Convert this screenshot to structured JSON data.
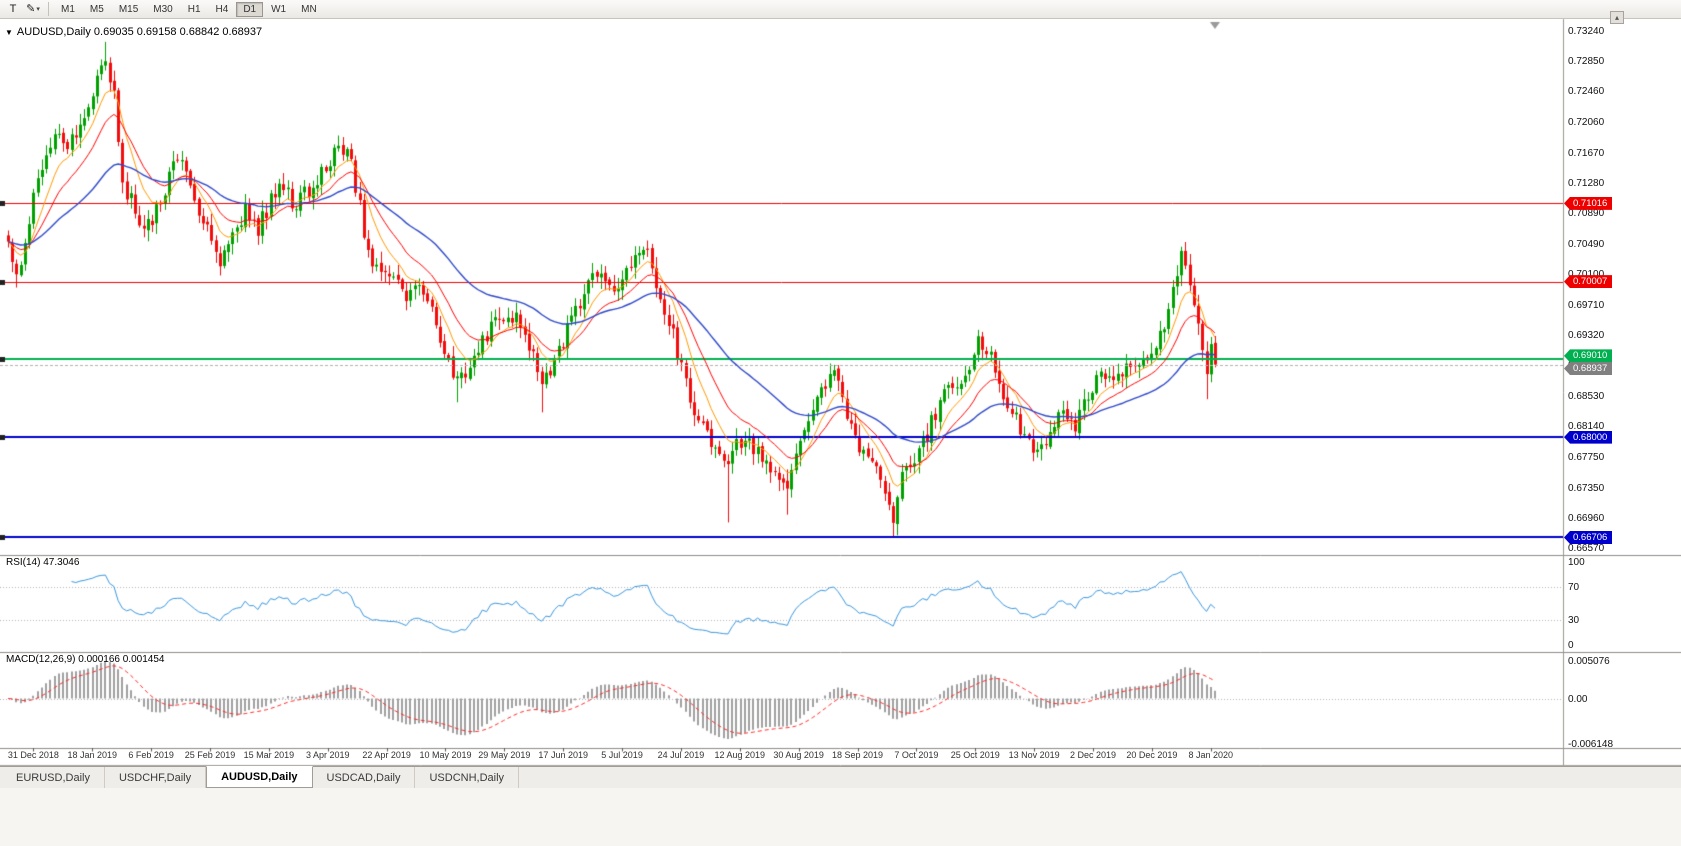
{
  "toolbar": {
    "text_tool_label": "T",
    "timeframes": [
      "M1",
      "M5",
      "M15",
      "M30",
      "H1",
      "H4",
      "D1",
      "W1",
      "MN"
    ],
    "active_timeframe": "D1"
  },
  "icons": {
    "pen": "✎",
    "caret": "▾",
    "collapse_triangle": "▼",
    "scroll_up": "▴"
  },
  "chart": {
    "title": "AUDUSD,Daily 0.69035 0.69158 0.68842 0.68937",
    "symbol": "AUDUSD,Daily",
    "quote": {
      "open": "0.69035",
      "high": "0.69158",
      "low": "0.68842",
      "close": "0.68937"
    }
  },
  "price_axis": {
    "ticks": [
      "0.73240",
      "0.72850",
      "0.72460",
      "0.72060",
      "0.71670",
      "0.71280",
      "0.70890",
      "0.70490",
      "0.70100",
      "0.69710",
      "0.69320",
      "0.68930",
      "0.68530",
      "0.68140",
      "0.67750",
      "0.67350",
      "0.66960",
      "0.66570"
    ],
    "badges": [
      {
        "label": "0.71016",
        "value": 0.71016,
        "color": "#ee0000",
        "type": "resistance-line",
        "dy": 0
      },
      {
        "label": "0.70007",
        "value": 0.70007,
        "color": "#ee0000",
        "type": "resistance-line",
        "dy": 0
      },
      {
        "label": "0.69010",
        "value": 0.6901,
        "color": "#00b050",
        "type": "support-line",
        "dy": -3
      },
      {
        "label": "0.68937",
        "value": 0.68937,
        "color": "#808080",
        "type": "current-price",
        "dy": 4
      },
      {
        "label": "0.68000",
        "value": 0.68,
        "color": "#0000cd",
        "type": "support-line",
        "dy": 0
      },
      {
        "label": "0.66706",
        "value": 0.66706,
        "color": "#0000cd",
        "type": "support-line",
        "dy": 0
      }
    ]
  },
  "x_axis": {
    "labels": [
      "31 Dec 2018",
      "18 Jan 2019",
      "6 Feb 2019",
      "25 Feb 2019",
      "15 Mar 2019",
      "3 Apr 2019",
      "22 Apr 2019",
      "10 May 2019",
      "29 May 2019",
      "17 Jun 2019",
      "5 Jul 2019",
      "24 Jul 2019",
      "12 Aug 2019",
      "30 Aug 2019",
      "18 Sep 2019",
      "7 Oct 2019",
      "25 Oct 2019",
      "13 Nov 2019",
      "2 Dec 2019",
      "20 Dec 2019",
      "8 Jan 2020"
    ]
  },
  "rsi": {
    "label": "RSI(14) 47.3046",
    "ticks": [
      "100",
      "70",
      "30",
      "0"
    ],
    "levels": [
      70,
      30
    ]
  },
  "macd": {
    "label": "MACD(12,26,9) 0.000166 0.001454",
    "ticks": [
      "0.005076",
      "0.00",
      "-0.006148"
    ]
  },
  "tabs": [
    {
      "label": "EURUSD,Daily",
      "active": false
    },
    {
      "label": "USDCHF,Daily",
      "active": false
    },
    {
      "label": "AUDUSD,Daily",
      "active": true
    },
    {
      "label": "USDCAD,Daily",
      "active": false
    },
    {
      "label": "USDCNH,Daily",
      "active": false
    }
  ],
  "colors": {
    "bull": "#00a000",
    "bear": "#f20c0c",
    "ma_fast": "#ff9900",
    "ma_mid": "#ff0000",
    "ma_slow": "#2f49c8",
    "rsi_line": "#3a96dd",
    "macd_hist": "#a0a0a0",
    "macd_signal": "#ff2a2a",
    "current_price_line": "#b0b0b0",
    "grid_dotted": "#b5b5b5"
  },
  "chart_data": {
    "type": "candlestick",
    "symbol": "AUDUSD",
    "timeframe": "Daily",
    "visible_range": {
      "start": "31 Dec 2018",
      "end": "8 Jan 2020"
    },
    "y_range": [
      0.6657,
      0.7324
    ],
    "bar_count": 286,
    "last_quote": {
      "open": 0.69035,
      "high": 0.69158,
      "low": 0.68842,
      "close": 0.68937
    },
    "horizontal_lines": [
      {
        "price": 0.71016,
        "color": "#ee0000",
        "width": 1
      },
      {
        "price": 0.70007,
        "color": "#ee0000",
        "width": 1
      },
      {
        "price": 0.6901,
        "color": "#00b050",
        "width": 2
      },
      {
        "price": 0.68,
        "color": "#0000cd",
        "width": 2
      },
      {
        "price": 0.66706,
        "color": "#0000cd",
        "width": 2
      }
    ],
    "current_price": 0.68937,
    "price_waypoints": [
      [
        0,
        0.7045
      ],
      [
        2,
        0.7005
      ],
      [
        4,
        0.706
      ],
      [
        8,
        0.715
      ],
      [
        12,
        0.719
      ],
      [
        14,
        0.7165
      ],
      [
        17,
        0.721
      ],
      [
        20,
        0.7245
      ],
      [
        23,
        0.7285
      ],
      [
        25,
        0.724
      ],
      [
        27,
        0.712
      ],
      [
        29,
        0.7105
      ],
      [
        32,
        0.706
      ],
      [
        35,
        0.7095
      ],
      [
        38,
        0.7135
      ],
      [
        40,
        0.7165
      ],
      [
        42,
        0.7145
      ],
      [
        45,
        0.7095
      ],
      [
        48,
        0.706
      ],
      [
        50,
        0.703
      ],
      [
        53,
        0.706
      ],
      [
        56,
        0.7095
      ],
      [
        59,
        0.707
      ],
      [
        62,
        0.7105
      ],
      [
        65,
        0.7125
      ],
      [
        68,
        0.7095
      ],
      [
        70,
        0.7115
      ],
      [
        73,
        0.713
      ],
      [
        76,
        0.716
      ],
      [
        78,
        0.7185
      ],
      [
        81,
        0.715
      ],
      [
        83,
        0.71
      ],
      [
        85,
        0.7035
      ],
      [
        88,
        0.7015
      ],
      [
        91,
        0.7
      ],
      [
        94,
        0.6985
      ],
      [
        97,
        0.6995
      ],
      [
        100,
        0.696
      ],
      [
        103,
        0.691
      ],
      [
        106,
        0.687
      ],
      [
        109,
        0.689
      ],
      [
        112,
        0.6925
      ],
      [
        115,
        0.695
      ],
      [
        118,
        0.6965
      ],
      [
        121,
        0.6945
      ],
      [
        124,
        0.6905
      ],
      [
        126,
        0.6865
      ],
      [
        128,
        0.689
      ],
      [
        131,
        0.6925
      ],
      [
        134,
        0.6965
      ],
      [
        137,
        0.6995
      ],
      [
        140,
        0.7015
      ],
      [
        143,
        0.6985
      ],
      [
        146,
        0.701
      ],
      [
        149,
        0.7045
      ],
      [
        151,
        0.7035
      ],
      [
        154,
        0.6985
      ],
      [
        157,
        0.693
      ],
      [
        160,
        0.687
      ],
      [
        163,
        0.682
      ],
      [
        166,
        0.679
      ],
      [
        168,
        0.6775
      ],
      [
        170,
        0.6755
      ],
      [
        172,
        0.68
      ],
      [
        175,
        0.679
      ],
      [
        178,
        0.677
      ],
      [
        181,
        0.6745
      ],
      [
        184,
        0.673
      ],
      [
        187,
        0.6795
      ],
      [
        190,
        0.684
      ],
      [
        193,
        0.687
      ],
      [
        195,
        0.688
      ],
      [
        197,
        0.6845
      ],
      [
        200,
        0.6795
      ],
      [
        203,
        0.6765
      ],
      [
        206,
        0.6745
      ],
      [
        208,
        0.6715
      ],
      [
        209,
        0.67
      ],
      [
        211,
        0.6745
      ],
      [
        214,
        0.6775
      ],
      [
        217,
        0.6805
      ],
      [
        220,
        0.6845
      ],
      [
        222,
        0.687
      ],
      [
        224,
        0.6855
      ],
      [
        227,
        0.689
      ],
      [
        229,
        0.692
      ],
      [
        232,
        0.69
      ],
      [
        234,
        0.686
      ],
      [
        237,
        0.6835
      ],
      [
        240,
        0.68
      ],
      [
        243,
        0.6785
      ],
      [
        246,
        0.6805
      ],
      [
        249,
        0.683
      ],
      [
        252,
        0.6815
      ],
      [
        255,
        0.6855
      ],
      [
        258,
        0.6885
      ],
      [
        261,
        0.6865
      ],
      [
        264,
        0.6895
      ],
      [
        267,
        0.6898
      ],
      [
        270,
        0.6905
      ],
      [
        273,
        0.6945
      ],
      [
        275,
        0.6985
      ],
      [
        277,
        0.703
      ],
      [
        279,
        0.7
      ],
      [
        281,
        0.6955
      ],
      [
        283,
        0.689
      ],
      [
        284,
        0.6915
      ],
      [
        285,
        0.68937
      ]
    ],
    "spikes": [
      {
        "i": 2,
        "low": 0.6993
      },
      {
        "i": 23,
        "high": 0.731
      },
      {
        "i": 106,
        "low": 0.6845
      },
      {
        "i": 126,
        "low": 0.6832
      },
      {
        "i": 170,
        "low": 0.669
      },
      {
        "i": 184,
        "low": 0.67
      },
      {
        "i": 209,
        "low": 0.6671
      },
      {
        "i": 277,
        "high": 0.7041
      },
      {
        "i": 283,
        "low": 0.6849
      }
    ],
    "indicators": {
      "moving_averages": [
        {
          "color": "#ff9900",
          "estimated_period": 8,
          "type": "ema"
        },
        {
          "color": "#ff0000",
          "estimated_period": 16,
          "type": "ema"
        },
        {
          "color": "#2f49c8",
          "estimated_period": 42,
          "type": "ema"
        }
      ],
      "rsi": {
        "period": 14,
        "current": 47.3046,
        "scale": [
          0,
          100
        ],
        "levels": [
          30,
          70
        ]
      },
      "macd": {
        "fast": 12,
        "slow": 26,
        "signal": 9,
        "values": [
          0.000166,
          0.001454
        ],
        "scale": [
          0.005076,
          -0.006148
        ]
      }
    }
  }
}
